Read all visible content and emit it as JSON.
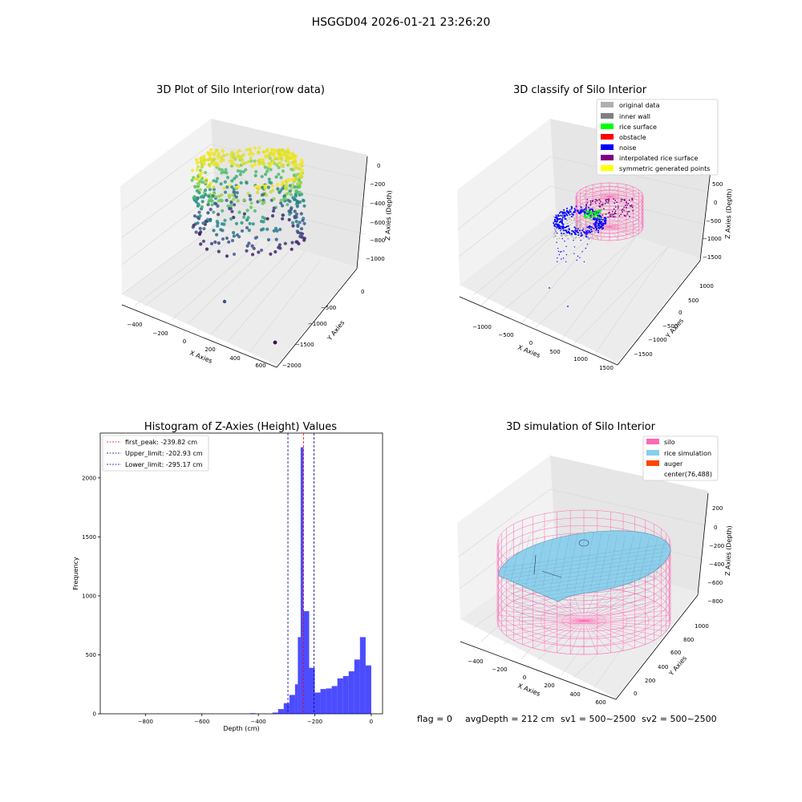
{
  "figure_title": "HSGGD04 2026-01-21 23:26:20",
  "footer": {
    "flag": "flag = 0",
    "avg_depth": "avgDepth = 212 cm",
    "sv1": "sv1 = 500~2500",
    "sv2": "sv2 = 500~2500"
  },
  "colors": {
    "hist_bar": "#0000ff",
    "first_peak": "#ff0000",
    "limits": "#00008b",
    "silo": "#ff69b4",
    "rice_simulation": "#87ceeb",
    "auger": "#ff4500",
    "original_data": "#b0b0b0",
    "inner_wall": "#808080",
    "rice_surface": "#00ff00",
    "obstacle": "#ff0000",
    "noise": "#0000ff",
    "interpolated_rice_surface": "#800080",
    "symmetric_generated_points": "#ffff00"
  },
  "chart_data": [
    {
      "type": "scatter",
      "subtype": "3d",
      "title": "3D Plot of Silo Interior(row data)",
      "xlabel": "X Axies",
      "ylabel": "Y Axies",
      "zlabel": "Z Axies (Depth)",
      "x_ticks": [
        "−400",
        "−200",
        "0",
        "200",
        "400",
        "600"
      ],
      "y_ticks": [
        "0",
        "−500",
        "−1000",
        "−1500",
        "−2000"
      ],
      "z_ticks": [
        "0",
        "−200",
        "−400",
        "−600",
        "−800",
        "−1000"
      ],
      "colormap": "viridis",
      "grid": true
    },
    {
      "type": "scatter",
      "subtype": "3d",
      "title": "3D classify of Silo Interior",
      "xlabel": "X Axies",
      "ylabel": "Y Axies",
      "zlabel": "Z Axies (Depth)",
      "x_ticks": [
        "−1000",
        "−500",
        "0",
        "500",
        "1000",
        "1500"
      ],
      "y_ticks": [
        "1000",
        "500",
        "0",
        "−500",
        "−1000",
        "−1500"
      ],
      "z_ticks": [
        "500",
        "0",
        "−500",
        "−1000",
        "−1500"
      ],
      "legend": [
        "original data",
        "inner wall",
        "rice surface",
        "obstacle",
        "noise",
        "interpolated rice surface",
        "symmetric generated points"
      ],
      "legend_position": "top-right",
      "grid": true
    },
    {
      "type": "bar",
      "subtype": "histogram",
      "title": "Histogram of Z-Axies (Height) Values",
      "xlabel": "Depth (cm)",
      "ylabel": "Frequency",
      "xlim": [
        -960,
        40
      ],
      "ylim": [
        0,
        2380
      ],
      "x_ticks": [
        -800,
        -600,
        -400,
        -200,
        0
      ],
      "x_tick_labels": [
        "−800",
        "−600",
        "−400",
        "−200",
        "0"
      ],
      "y_ticks": [
        0,
        500,
        1000,
        1500,
        2000
      ],
      "y_tick_labels": [
        "0",
        "500",
        "1000",
        "1500",
        "2000"
      ],
      "bins": [
        {
          "x0": -430,
          "x1": -410,
          "count": 5
        },
        {
          "x0": -350,
          "x1": -330,
          "count": 10
        },
        {
          "x0": -330,
          "x1": -310,
          "count": 40
        },
        {
          "x0": -310,
          "x1": -290,
          "count": 90
        },
        {
          "x0": -290,
          "x1": -270,
          "count": 160
        },
        {
          "x0": -270,
          "x1": -260,
          "count": 250
        },
        {
          "x0": -260,
          "x1": -250,
          "count": 650
        },
        {
          "x0": -250,
          "x1": -240,
          "count": 2260
        },
        {
          "x0": -240,
          "x1": -220,
          "count": 870
        },
        {
          "x0": -220,
          "x1": -200,
          "count": 390
        },
        {
          "x0": -200,
          "x1": -180,
          "count": 180
        },
        {
          "x0": -180,
          "x1": -160,
          "count": 210
        },
        {
          "x0": -160,
          "x1": -140,
          "count": 215
        },
        {
          "x0": -140,
          "x1": -120,
          "count": 235
        },
        {
          "x0": -120,
          "x1": -100,
          "count": 300
        },
        {
          "x0": -100,
          "x1": -80,
          "count": 320
        },
        {
          "x0": -80,
          "x1": -60,
          "count": 360
        },
        {
          "x0": -60,
          "x1": -40,
          "count": 460
        },
        {
          "x0": -40,
          "x1": -20,
          "count": 650
        },
        {
          "x0": -20,
          "x1": 0,
          "count": 410
        }
      ],
      "lines": [
        {
          "name": "first_peak: -239.82 cm",
          "x": -239.82,
          "color": "#ff0000"
        },
        {
          "name": "Upper_limit: -202.93 cm",
          "x": -202.93,
          "color": "#00008b"
        },
        {
          "name": "Lower_limit: -295.17 cm",
          "x": -295.17,
          "color": "#00008b"
        }
      ],
      "legend_position": "top-left",
      "grid": false
    },
    {
      "type": "area",
      "subtype": "3d-surface",
      "title": "3D simulation of Silo Interior",
      "xlabel": "X Axies",
      "ylabel": "Y Axies",
      "zlabel": "Z Axies (Depth)",
      "x_ticks": [
        "−400",
        "−200",
        "0",
        "200",
        "400",
        "600"
      ],
      "y_ticks": [
        "0",
        "200",
        "400",
        "600",
        "800",
        "1000"
      ],
      "z_ticks": [
        "200",
        "0",
        "−200",
        "−400",
        "−600",
        "−800"
      ],
      "legend": [
        "silo",
        "rice simulation",
        "auger",
        "center(76,488)"
      ],
      "legend_position": "top-right",
      "grid": true
    }
  ]
}
